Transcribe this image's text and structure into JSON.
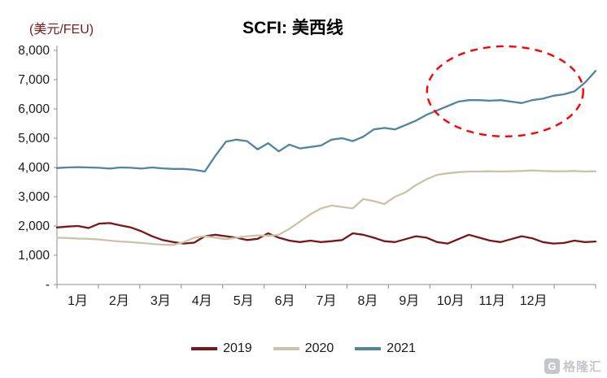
{
  "title": "SCFI: 美西线",
  "unit_label": "(美元/FEU)",
  "watermark": {
    "icon": "G",
    "text": "格隆汇"
  },
  "chart_data": {
    "type": "line",
    "title": "SCFI: 美西线",
    "unit": "美元/FEU",
    "x_tick_labels": [
      "1月",
      "2月",
      "3月",
      "4月",
      "5月",
      "6月",
      "7月",
      "8月",
      "9月",
      "10月",
      "11月",
      "12月"
    ],
    "y_tick_values": [
      0,
      1000,
      2000,
      3000,
      4000,
      5000,
      6000,
      7000,
      8000
    ],
    "y_tick_labels": [
      "-",
      "1,000",
      "2,000",
      "3,000",
      "4,000",
      "5,000",
      "6,000",
      "7,000",
      "8,000"
    ],
    "ylim": [
      0,
      8000
    ],
    "grid": false,
    "legend_position": "bottom",
    "axis_color": "#8c8c8c",
    "tick_text_color": "#1a1a1a",
    "series": [
      {
        "name": "2019",
        "color": "#7c1518",
        "values": [
          1950,
          1980,
          2000,
          1930,
          2080,
          2100,
          2020,
          1950,
          1820,
          1650,
          1520,
          1450,
          1400,
          1430,
          1650,
          1700,
          1650,
          1600,
          1520,
          1560,
          1750,
          1600,
          1500,
          1450,
          1500,
          1450,
          1480,
          1520,
          1750,
          1700,
          1600,
          1480,
          1450,
          1550,
          1650,
          1600,
          1450,
          1400,
          1550,
          1700,
          1600,
          1500,
          1450,
          1550,
          1650,
          1580,
          1450,
          1400,
          1420,
          1500,
          1450,
          1470
        ]
      },
      {
        "name": "2020",
        "color": "#c9c4a8",
        "values": [
          1600,
          1590,
          1570,
          1560,
          1540,
          1500,
          1470,
          1450,
          1420,
          1390,
          1360,
          1350,
          1450,
          1600,
          1650,
          1600,
          1550,
          1600,
          1650,
          1680,
          1660,
          1700,
          1900,
          2150,
          2400,
          2600,
          2700,
          2650,
          2600,
          2920,
          2850,
          2750,
          3000,
          3150,
          3400,
          3600,
          3750,
          3800,
          3840,
          3860,
          3860,
          3870,
          3860,
          3870,
          3880,
          3900,
          3880,
          3870,
          3870,
          3880,
          3860,
          3870
        ]
      },
      {
        "name": "2021",
        "color": "#4e86a0",
        "values": [
          3980,
          4000,
          4010,
          4000,
          3990,
          3960,
          4000,
          3990,
          3960,
          4000,
          3970,
          3950,
          3950,
          3920,
          3860,
          4400,
          4880,
          4950,
          4900,
          4620,
          4830,
          4550,
          4780,
          4650,
          4700,
          4750,
          4950,
          5000,
          4900,
          5050,
          5300,
          5350,
          5300,
          5450,
          5600,
          5800,
          5950,
          6100,
          6250,
          6300,
          6300,
          6280,
          6300,
          6250,
          6200,
          6300,
          6350,
          6450,
          6500,
          6600,
          6900,
          7300
        ]
      }
    ],
    "annotation": {
      "shape": "ellipse",
      "color": "#ff0000",
      "cx_frac": 0.832,
      "cy_value": 6600,
      "rx_frac": 0.145,
      "ry_value": 1540,
      "meaning": "highlight of late-2021 rate surge"
    }
  }
}
